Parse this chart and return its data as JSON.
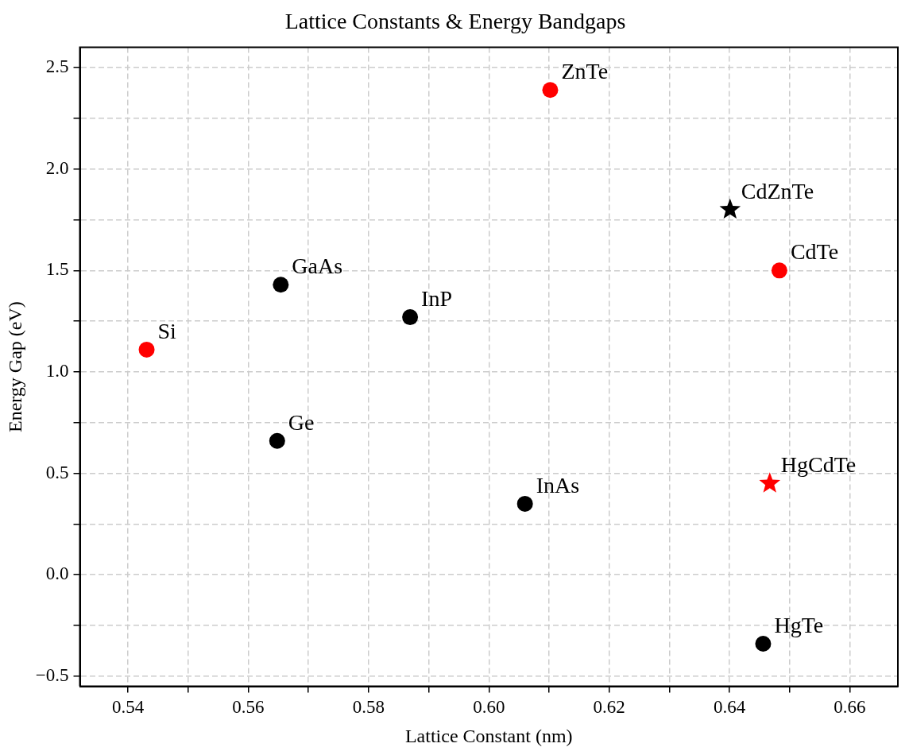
{
  "chart_data": {
    "type": "scatter",
    "title": "Lattice Constants & Energy Bandgaps",
    "xlabel": "Lattice Constant (nm)",
    "ylabel": "Energy Gap (eV)",
    "xlim": [
      0.532,
      0.668
    ],
    "ylim": [
      -0.55,
      2.6
    ],
    "xticks": [
      0.54,
      {
        "value": 0.55,
        "label": null
      },
      0.56,
      {
        "value": 0.57,
        "label": null
      },
      0.58,
      {
        "value": 0.59,
        "label": null
      },
      {
        "value": 0.6,
        "label": "0.60"
      },
      {
        "value": 0.61,
        "label": null
      },
      0.62,
      {
        "value": 0.63,
        "label": null
      },
      0.64,
      {
        "value": 0.65,
        "label": null
      },
      0.66
    ],
    "yticks": [
      {
        "value": -0.5,
        "label": "−0.5"
      },
      {
        "value": -0.25,
        "label": null
      },
      {
        "value": 0,
        "label": "0.0"
      },
      {
        "value": 0.25,
        "label": null
      },
      {
        "value": 0.5,
        "label": "0.5"
      },
      {
        "value": 0.75,
        "label": null
      },
      {
        "value": 1,
        "label": "1.0"
      },
      {
        "value": 1.25,
        "label": null
      },
      1.5,
      {
        "value": 1.75,
        "label": null
      },
      {
        "value": 2,
        "label": "2.0"
      },
      {
        "value": 2.25,
        "label": null
      },
      2.5
    ],
    "grid": true,
    "series": [
      {
        "marker": "circle",
        "x": [
          0.5431,
          0.5654,
          0.5648,
          0.5869,
          0.606,
          0.6102,
          0.6483,
          0.6456
        ],
        "values": [
          1.11,
          1.43,
          0.66,
          1.27,
          0.35,
          2.39,
          1.5,
          -0.34
        ],
        "colors": [
          "#ff0000",
          "#000000",
          "#000000",
          "#000000",
          "#000000",
          "#ff0000",
          "#ff0000",
          "#000000"
        ]
      },
      {
        "marker": "star",
        "x": [
          0.6401,
          0.6467
        ],
        "values": [
          1.8,
          0.45
        ],
        "colors": [
          "#000000",
          "#ff0000"
        ]
      }
    ],
    "annotations": [
      {
        "text": "Si",
        "x": 0.5431,
        "y": 1.11
      },
      {
        "text": "GaAs",
        "x": 0.5654,
        "y": 1.43
      },
      {
        "text": "Ge",
        "x": 0.5648,
        "y": 0.66
      },
      {
        "text": "InP",
        "x": 0.5869,
        "y": 1.27
      },
      {
        "text": "InAs",
        "x": 0.606,
        "y": 0.35
      },
      {
        "text": "ZnTe",
        "x": 0.6102,
        "y": 2.39
      },
      {
        "text": "CdTe",
        "x": 0.6483,
        "y": 1.5
      },
      {
        "text": "HgTe",
        "x": 0.6456,
        "y": -0.34
      },
      {
        "text": "CdZnTe",
        "x": 0.6401,
        "y": 1.8
      },
      {
        "text": "HgCdTe",
        "x": 0.6467,
        "y": 0.45
      }
    ]
  }
}
